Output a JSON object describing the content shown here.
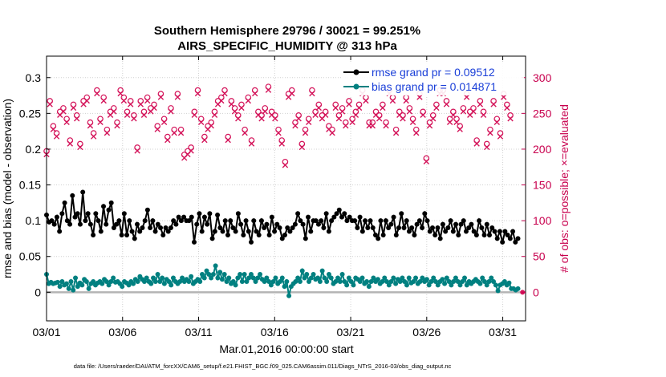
{
  "chart_data": {
    "type": "line",
    "title": "Southern Hemisphere 29796 / 30021 = 99.251%",
    "subtitle": "AIRS_SPECIFIC_HUMIDITY @ 313 hPa",
    "xlabel": "Mar.01,2016 00:00:00 start",
    "ylabel": "rmse and bias (model - observation)",
    "y2label": "# of obs: o=possible; ×=evaluated",
    "x_ticks": [
      "03/01",
      "03/06",
      "03/11",
      "03/16",
      "03/21",
      "03/26",
      "03/31"
    ],
    "x_tick_days": [
      1,
      6,
      11,
      16,
      21,
      26,
      31
    ],
    "xlim": [
      1,
      32.5
    ],
    "ylim": [
      -0.04,
      0.33
    ],
    "y_ticks": [
      "0",
      "0.05",
      "0.1",
      "0.15",
      "0.2",
      "0.25",
      "0.3"
    ],
    "y_tick_values": [
      0,
      0.05,
      0.1,
      0.15,
      0.2,
      0.25,
      0.3
    ],
    "y2lim": [
      -40,
      330
    ],
    "y2_ticks": [
      "0",
      "50",
      "100",
      "150",
      "200",
      "250",
      "300"
    ],
    "y2_tick_values": [
      0,
      50,
      100,
      150,
      200,
      250,
      300
    ],
    "grid": true,
    "legend_position": "top-right",
    "footnote": "data file: /Users/raeder/DAI/ATM_forcXX/CAM6_setup/f.e21.FHIST_BGC.f09_025.CAM6assim.011/Diags_NTrS_2016-03/obs_diag_output.nc",
    "colors": {
      "rmse": "#000000",
      "bias": "#008080",
      "obs": "#d4145a",
      "zero_line": "#b4b4b4"
    },
    "series": [
      {
        "name": "rmse grand pr = 0.09512",
        "values": [
          0.108,
          0.098,
          0.1,
          0.095,
          0.105,
          0.085,
          0.11,
          0.125,
          0.1,
          0.095,
          0.135,
          0.105,
          0.11,
          0.095,
          0.14,
          0.1,
          0.11,
          0.095,
          0.08,
          0.11,
          0.1,
          0.085,
          0.12,
          0.095,
          0.115,
          0.125,
          0.09,
          0.095,
          0.1,
          0.08,
          0.11,
          0.08,
          0.1,
          0.085,
          0.075,
          0.095,
          0.085,
          0.09,
          0.1,
          0.115,
          0.09,
          0.1,
          0.085,
          0.095,
          0.09,
          0.08,
          0.09,
          0.085,
          0.09,
          0.1,
          0.095,
          0.105,
          0.1,
          0.105,
          0.1,
          0.1,
          0.105,
          0.07,
          0.095,
          0.11,
          0.085,
          0.105,
          0.095,
          0.11,
          0.075,
          0.085,
          0.108,
          0.09,
          0.085,
          0.1,
          0.08,
          0.1,
          0.09,
          0.085,
          0.11,
          0.095,
          0.08,
          0.1,
          0.085,
          0.07,
          0.1,
          0.085,
          0.08,
          0.1,
          0.09,
          0.095,
          0.08,
          0.105,
          0.085,
          0.095,
          0.09,
          0.075,
          0.08,
          0.09,
          0.085,
          0.09,
          0.095,
          0.11,
          0.1,
          0.095,
          0.075,
          0.105,
          0.085,
          0.1,
          0.1,
          0.095,
          0.1,
          0.09,
          0.11,
          0.085,
          0.1,
          0.105,
          0.11,
          0.115,
          0.105,
          0.11,
          0.1,
          0.105,
          0.1,
          0.1,
          0.09,
          0.105,
          0.085,
          0.1,
          0.09,
          0.1,
          0.09,
          0.08,
          0.075,
          0.1,
          0.08,
          0.1,
          0.09,
          0.095,
          0.105,
          0.08,
          0.09,
          0.11,
          0.09,
          0.1,
          0.085,
          0.09,
          0.08,
          0.095,
          0.1,
          0.09,
          0.11,
          0.1,
          0.085,
          0.09,
          0.08,
          0.09,
          0.075,
          0.095,
          0.085,
          0.09,
          0.1,
          0.085,
          0.095,
          0.08,
          0.095,
          0.1,
          0.085,
          0.09,
          0.095,
          0.085,
          0.08,
          0.1,
          0.09,
          0.08,
          0.095,
          0.08,
          0.09,
          0.085,
          0.075,
          0.085,
          0.07,
          0.085,
          0.08,
          0.075,
          0.085,
          0.07,
          0.075
        ]
      },
      {
        "name": "bias grand pr = 0.014871",
        "values": [
          0.025,
          0.012,
          0.014,
          0.012,
          0.013,
          0.014,
          0.008,
          0.015,
          0.01,
          0.012,
          0.005,
          0.015,
          0.003,
          0.02,
          0.008,
          0.013,
          0.01,
          0.018,
          0.015,
          0.005,
          0.012,
          0.015,
          0.01,
          0.013,
          0.015,
          0.012,
          0.018,
          0.015,
          0.01,
          0.015,
          0.02,
          0.014,
          0.015,
          0.012,
          0.008,
          0.015,
          0.013,
          0.01,
          0.015,
          0.012,
          0.018,
          0.015,
          0.022,
          0.018,
          0.015,
          0.02,
          0.015,
          0.012,
          0.02,
          0.015,
          0.025,
          0.015,
          0.02,
          0.012,
          0.018,
          0.015,
          0.01,
          0.02,
          0.015,
          0.012,
          0.015,
          0.02,
          0.015,
          0.018,
          0.015,
          0.022,
          0.012,
          0.015,
          0.018,
          0.015,
          0.025,
          0.02,
          0.03,
          0.025,
          0.02,
          0.025,
          0.037,
          0.02,
          0.028,
          0.018,
          0.025,
          0.015,
          0.02,
          0.012,
          0.015,
          0.01,
          0.02,
          0.025,
          0.015,
          0.025,
          0.015,
          0.02,
          0.025,
          0.02,
          0.015,
          0.02,
          0.025,
          0.018,
          0.015,
          0.02,
          0.015,
          0.01,
          0.015,
          0.02,
          0.012,
          0.015,
          0.02,
          0.008,
          0.015,
          -0.005,
          0.008,
          0.012,
          0.015,
          0.02,
          0.015,
          0.03,
          0.02,
          0.025,
          0.015,
          0.02,
          0.025,
          0.018,
          0.02,
          0.015,
          0.03,
          0.02,
          0.015,
          0.025,
          0.02,
          0.012,
          0.015,
          0.02,
          0.015,
          0.025,
          0.015,
          0.01,
          0.02,
          0.015,
          0.01,
          0.02,
          0.018,
          0.015,
          0.02,
          0.012,
          0.015,
          0.008,
          0.015,
          0.02,
          0.015,
          0.018,
          0.012,
          0.015,
          0.02,
          0.015,
          0.01,
          0.015,
          0.02,
          0.012,
          0.018,
          0.015,
          0.02,
          0.015,
          0.01,
          0.02,
          0.013,
          0.015,
          0.02,
          0.012,
          0.015,
          0.02,
          0.015,
          0.018,
          0.01,
          0.015,
          0.02,
          0.015,
          0.01,
          0.015,
          0.018,
          0.012,
          0.02,
          0.015,
          0.01,
          0.015,
          0.02,
          0.015,
          0.01,
          0.015,
          0.02,
          0.01,
          0.015,
          0.012,
          0.015,
          0.018,
          0.015,
          0.012,
          0.02,
          0.015,
          0.01,
          0.015,
          0.02,
          0.015,
          0.01,
          0.002,
          0.01,
          0.012,
          0.015,
          0.01,
          0.013,
          0.005,
          0.005,
          0.003,
          0.005
        ]
      }
    ],
    "obs_counts": [
      195,
      265,
      230,
      220,
      250,
      255,
      240,
      210,
      260,
      245,
      205,
      265,
      270,
      235,
      220,
      280,
      240,
      270,
      225,
      250,
      255,
      235,
      280,
      270,
      250,
      265,
      245,
      200,
      265,
      250,
      270,
      255,
      260,
      230,
      275,
      240,
      215,
      255,
      225,
      275,
      225,
      190,
      195,
      200,
      250,
      280,
      240,
      215,
      230,
      235,
      250,
      265,
      270,
      280,
      215,
      265,
      255,
      245,
      260,
      225,
      270,
      210,
      280,
      250,
      245,
      255,
      285,
      250,
      245,
      225,
      210,
      180,
      275,
      280,
      235,
      245,
      205,
      225,
      240,
      280,
      250,
      260,
      245,
      250,
      230,
      225,
      260,
      245,
      255,
      235,
      265,
      240,
      250,
      260,
      280,
      270,
      235,
      235,
      250,
      245,
      260,
      235,
      280,
      270,
      225,
      250,
      245,
      270,
      255,
      240,
      225,
      275,
      250,
      185,
      235,
      245,
      260,
      280,
      280,
      265,
      240,
      250,
      240,
      230,
      255,
      275,
      250,
      255,
      210,
      265,
      250,
      205,
      225,
      265,
      240,
      220,
      275,
      260,
      245
    ]
  }
}
